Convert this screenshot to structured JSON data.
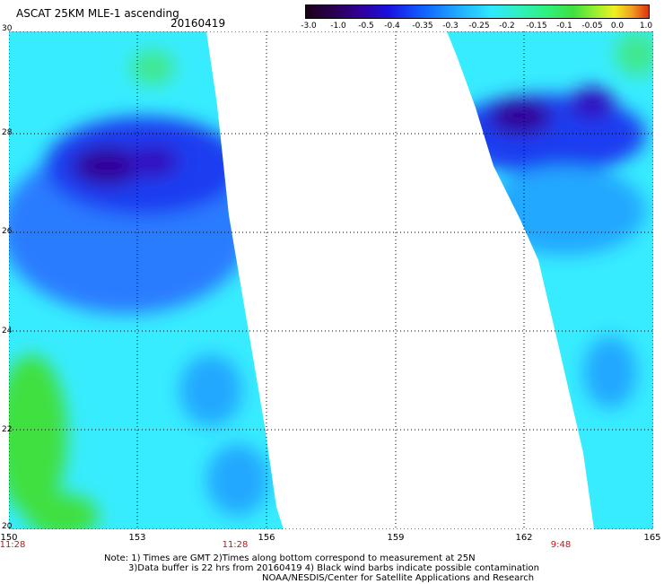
{
  "title": "ASCAT 25KM MLE-1 ascending",
  "date": "20160419",
  "colorbar": {
    "labels": [
      "-3.0",
      "-1.0",
      "-0.5",
      "-0.4",
      "-0.35",
      "-0.3",
      "-0.25",
      "-0.2",
      "-0.15",
      "-0.1",
      "-0.05",
      "0.0",
      "1.0"
    ],
    "colors": [
      "#1b0019",
      "#30009a",
      "#1060ff",
      "#30e8ff",
      "#30f080",
      "#f0f020",
      "#e03010"
    ]
  },
  "axes": {
    "lat_labels": [
      "30",
      "28",
      "26",
      "24",
      "22",
      "20"
    ],
    "lon_labels": [
      "150",
      "153",
      "156",
      "159",
      "162",
      "165"
    ]
  },
  "time_labels": [
    "11:28",
    "11:28",
    "9:48"
  ],
  "notes": {
    "line1": "Note: 1) Times are GMT 2)Times along bottom correspond to measurement at 25N",
    "line2": "3)Data buffer is 22 hrs from 20160419 4) Black wind barbs indicate possible contamination",
    "credit": "NOAA/NESDIS/Center for Satellite Applications and Research"
  }
}
